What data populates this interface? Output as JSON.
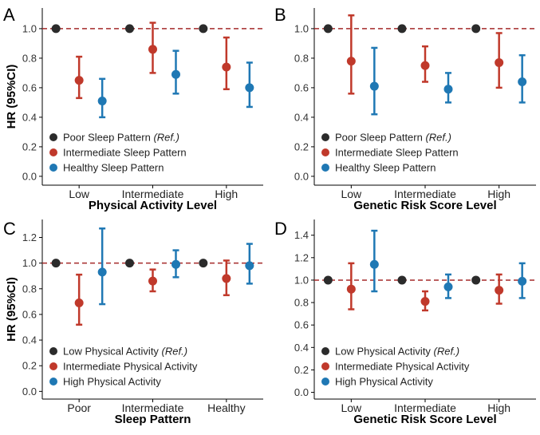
{
  "chart_data": [
    {
      "panel": "A",
      "type": "scatter",
      "xlabel": "Physical Activity Level",
      "ylabel": "HR (95%CI)",
      "categories": [
        "Low",
        "Intermediate",
        "High"
      ],
      "ylim": [
        -0.06,
        1.14
      ],
      "yticks": [
        "0.0",
        "0.2",
        "0.4",
        "0.6",
        "0.8",
        "1.0"
      ],
      "reference_line": 1.0,
      "legend_position": "bottom-left",
      "legend": [
        {
          "text": "Poor Sleep Pattern ",
          "ref": "(Ref.)",
          "color": "#2b2b2b"
        },
        {
          "text": "Intermediate Sleep Pattern",
          "ref": "",
          "color": "#c0392b"
        },
        {
          "text": "Healthy Sleep Pattern",
          "ref": "",
          "color": "#1f78b4"
        }
      ],
      "series": [
        {
          "name": "Poor Sleep Pattern (Ref.)",
          "color": "#2b2b2b",
          "values": [
            1.0,
            1.0,
            1.0
          ],
          "lower": [
            null,
            null,
            null
          ],
          "upper": [
            null,
            null,
            null
          ]
        },
        {
          "name": "Intermediate Sleep Pattern",
          "color": "#c0392b",
          "values": [
            0.65,
            0.86,
            0.74
          ],
          "lower": [
            0.53,
            0.7,
            0.59
          ],
          "upper": [
            0.81,
            1.04,
            0.94
          ]
        },
        {
          "name": "Healthy Sleep Pattern",
          "color": "#1f78b4",
          "values": [
            0.51,
            0.69,
            0.6
          ],
          "lower": [
            0.4,
            0.56,
            0.47
          ],
          "upper": [
            0.66,
            0.85,
            0.77
          ]
        }
      ]
    },
    {
      "panel": "B",
      "type": "scatter",
      "xlabel": "Genetic Risk Score Level",
      "ylabel": "",
      "categories": [
        "Low",
        "Intermediate",
        "High"
      ],
      "ylim": [
        -0.06,
        1.14
      ],
      "yticks": [
        "0.0",
        "0.2",
        "0.4",
        "0.6",
        "0.8",
        "1.0"
      ],
      "reference_line": 1.0,
      "legend_position": "bottom-left",
      "legend": [
        {
          "text": "Poor Sleep Pattern ",
          "ref": "(Ref.)",
          "color": "#2b2b2b"
        },
        {
          "text": "Intermediate Sleep Pattern",
          "ref": "",
          "color": "#c0392b"
        },
        {
          "text": "Healthy Sleep Pattern",
          "ref": "",
          "color": "#1f78b4"
        }
      ],
      "series": [
        {
          "name": "Poor Sleep Pattern (Ref.)",
          "color": "#2b2b2b",
          "values": [
            1.0,
            1.0,
            1.0
          ],
          "lower": [
            null,
            null,
            null
          ],
          "upper": [
            null,
            null,
            null
          ]
        },
        {
          "name": "Intermediate Sleep Pattern",
          "color": "#c0392b",
          "values": [
            0.78,
            0.75,
            0.77
          ],
          "lower": [
            0.56,
            0.64,
            0.6
          ],
          "upper": [
            1.09,
            0.88,
            0.97
          ]
        },
        {
          "name": "Healthy Sleep Pattern",
          "color": "#1f78b4",
          "values": [
            0.61,
            0.59,
            0.64
          ],
          "lower": [
            0.42,
            0.5,
            0.5
          ],
          "upper": [
            0.87,
            0.7,
            0.82
          ]
        }
      ]
    },
    {
      "panel": "C",
      "type": "scatter",
      "xlabel": "Sleep Pattern",
      "ylabel": "HR (95%CI)",
      "categories": [
        "Poor",
        "Intermediate",
        "Healthy"
      ],
      "ylim": [
        -0.06,
        1.34
      ],
      "yticks": [
        "0.0",
        "0.2",
        "0.4",
        "0.6",
        "0.8",
        "1.0",
        "1.2"
      ],
      "reference_line": 1.0,
      "legend_position": "bottom-left",
      "legend": [
        {
          "text": "Low Physical Activity ",
          "ref": "(Ref.)",
          "color": "#2b2b2b"
        },
        {
          "text": "Intermediate Physical Activity",
          "ref": "",
          "color": "#c0392b"
        },
        {
          "text": "High Physical Activity",
          "ref": "",
          "color": "#1f78b4"
        }
      ],
      "series": [
        {
          "name": "Low Physical Activity (Ref.)",
          "color": "#2b2b2b",
          "values": [
            1.0,
            1.0,
            1.0
          ],
          "lower": [
            null,
            null,
            null
          ],
          "upper": [
            null,
            null,
            null
          ]
        },
        {
          "name": "Intermediate Physical Activity",
          "color": "#c0392b",
          "values": [
            0.69,
            0.86,
            0.88
          ],
          "lower": [
            0.52,
            0.78,
            0.75
          ],
          "upper": [
            0.91,
            0.95,
            1.02
          ]
        },
        {
          "name": "High Physical Activity",
          "color": "#1f78b4",
          "values": [
            0.93,
            0.99,
            0.98
          ],
          "lower": [
            0.68,
            0.89,
            0.84
          ],
          "upper": [
            1.27,
            1.1,
            1.15
          ]
        }
      ]
    },
    {
      "panel": "D",
      "type": "scatter",
      "xlabel": "Genetic Risk Score Level",
      "ylabel": "",
      "categories": [
        "Low",
        "Intermediate",
        "High"
      ],
      "ylim": [
        -0.06,
        1.54
      ],
      "yticks": [
        "0.0",
        "0.2",
        "0.4",
        "0.6",
        "0.8",
        "1.0",
        "1.2",
        "1.4"
      ],
      "reference_line": 1.0,
      "legend_position": "bottom-left",
      "legend": [
        {
          "text": "Low Physical Activity ",
          "ref": "(Ref.)",
          "color": "#2b2b2b"
        },
        {
          "text": "Intermediate Physical Activity",
          "ref": "",
          "color": "#c0392b"
        },
        {
          "text": "High Physical Activity",
          "ref": "",
          "color": "#1f78b4"
        }
      ],
      "series": [
        {
          "name": "Low Physical Activity (Ref.)",
          "color": "#2b2b2b",
          "values": [
            1.0,
            1.0,
            1.0
          ],
          "lower": [
            null,
            null,
            null
          ],
          "upper": [
            null,
            null,
            null
          ]
        },
        {
          "name": "Intermediate Physical Activity",
          "color": "#c0392b",
          "values": [
            0.92,
            0.81,
            0.91
          ],
          "lower": [
            0.74,
            0.73,
            0.79
          ],
          "upper": [
            1.15,
            0.9,
            1.05
          ]
        },
        {
          "name": "High Physical Activity",
          "color": "#1f78b4",
          "values": [
            1.14,
            0.94,
            0.99
          ],
          "lower": [
            0.9,
            0.84,
            0.84
          ],
          "upper": [
            1.44,
            1.05,
            1.15
          ]
        }
      ]
    }
  ]
}
